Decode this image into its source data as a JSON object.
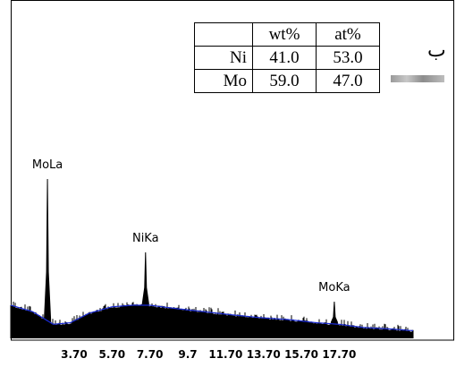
{
  "composition_table": {
    "headers": [
      "",
      "wt%",
      "at%"
    ],
    "rows": [
      {
        "element": "Ni",
        "wt": "41.0",
        "at": "53.0"
      },
      {
        "element": "Mo",
        "wt": "59.0",
        "at": "47.0"
      }
    ]
  },
  "panel_marker": "ب",
  "chart_data": {
    "type": "line",
    "title": "",
    "xlabel": "",
    "ylabel": "",
    "x_ticks": [
      "3.70",
      "5.70",
      "7.70",
      "9.7",
      "11.70",
      "13.70",
      "15.70",
      "17.70"
    ],
    "x_tick_values": [
      3.7,
      5.7,
      7.7,
      9.7,
      11.7,
      13.7,
      15.7,
      17.7
    ],
    "xlim": [
      0.35,
      21.6
    ],
    "ylim": [
      0,
      100
    ],
    "peaks": [
      {
        "label": "MoLa",
        "energy": 2.29,
        "height": 100
      },
      {
        "label": "NiKa",
        "energy": 7.47,
        "height": 54
      },
      {
        "label": "MoKa",
        "energy": 17.44,
        "height": 23
      }
    ],
    "background_profile": [
      {
        "x": 0.35,
        "y": 20
      },
      {
        "x": 1.5,
        "y": 16
      },
      {
        "x": 2.6,
        "y": 8
      },
      {
        "x": 3.5,
        "y": 9
      },
      {
        "x": 4.5,
        "y": 15
      },
      {
        "x": 5.7,
        "y": 19
      },
      {
        "x": 6.8,
        "y": 20
      },
      {
        "x": 7.7,
        "y": 20
      },
      {
        "x": 9.0,
        "y": 18
      },
      {
        "x": 10.5,
        "y": 16
      },
      {
        "x": 12.0,
        "y": 14
      },
      {
        "x": 13.7,
        "y": 12
      },
      {
        "x": 15.0,
        "y": 11
      },
      {
        "x": 16.5,
        "y": 9
      },
      {
        "x": 17.7,
        "y": 8
      },
      {
        "x": 19.0,
        "y": 6
      },
      {
        "x": 20.5,
        "y": 5
      },
      {
        "x": 21.6,
        "y": 4
      }
    ],
    "colors": {
      "fill": "#000000",
      "outline": "#1a2bd6"
    }
  }
}
